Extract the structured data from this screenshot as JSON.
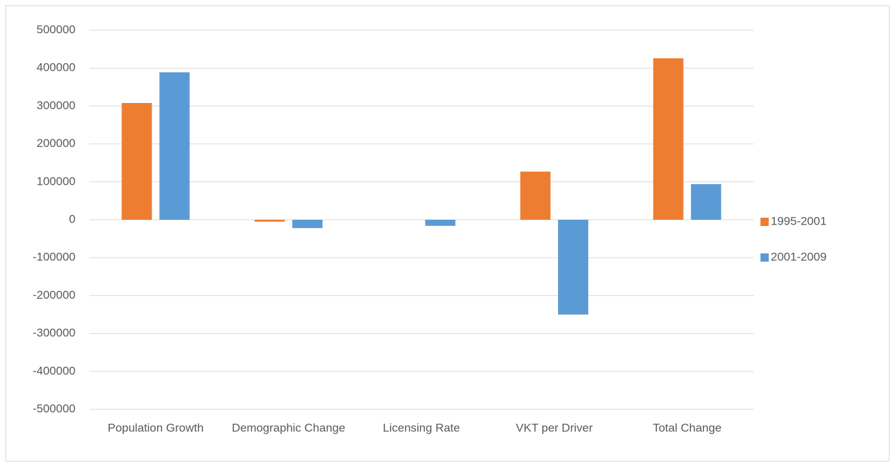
{
  "chart_data": {
    "type": "bar",
    "categories": [
      "Population Growth",
      "Demographic Change",
      "Licensing Rate",
      "VKT per Driver",
      "Total Change"
    ],
    "series": [
      {
        "name": "1995-2001",
        "color": "#ed7d31",
        "values": [
          308000,
          -5000,
          0,
          127000,
          426000
        ]
      },
      {
        "name": "2001-2009",
        "color": "#5b9bd5",
        "values": [
          389000,
          -22000,
          -16000,
          -250000,
          94000
        ]
      }
    ],
    "ylim": [
      -500000,
      500000
    ],
    "yticks": [
      -500000,
      -400000,
      -300000,
      -200000,
      -100000,
      0,
      100000,
      200000,
      300000,
      400000,
      500000
    ],
    "grid": true,
    "legend": "right"
  }
}
